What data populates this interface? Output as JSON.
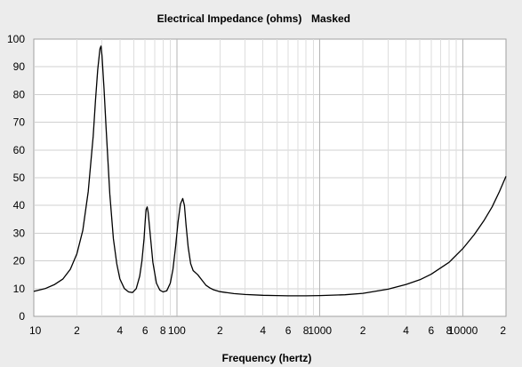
{
  "window": {
    "title": "Electrical Impedance (ohms)",
    "mode_label": "Masked"
  },
  "chart_data": {
    "type": "line",
    "title": "Electrical Impedance (ohms)",
    "subtitle": "Masked",
    "xlabel": "Frequency (hertz)",
    "ylabel": "",
    "xscale": "log",
    "xlim": [
      10,
      20000
    ],
    "ylim": [
      0,
      100
    ],
    "grid": true,
    "x_tick_labels": [
      {
        "value": 10,
        "label": "10"
      },
      {
        "value": 20,
        "label": "2"
      },
      {
        "value": 40,
        "label": "4"
      },
      {
        "value": 60,
        "label": "6"
      },
      {
        "value": 80,
        "label": "8"
      },
      {
        "value": 100,
        "label": "100"
      },
      {
        "value": 200,
        "label": "2"
      },
      {
        "value": 400,
        "label": "4"
      },
      {
        "value": 600,
        "label": "6"
      },
      {
        "value": 800,
        "label": "8"
      },
      {
        "value": 1000,
        "label": "1000"
      },
      {
        "value": 2000,
        "label": "2"
      },
      {
        "value": 4000,
        "label": "4"
      },
      {
        "value": 6000,
        "label": "6"
      },
      {
        "value": 8000,
        "label": "8"
      },
      {
        "value": 10000,
        "label": "10000"
      },
      {
        "value": 20000,
        "label": "2"
      }
    ],
    "y_ticks": [
      0,
      10,
      20,
      30,
      40,
      50,
      60,
      70,
      80,
      90,
      100
    ],
    "series": [
      {
        "color": "#000000",
        "x": [
          10,
          12,
          14,
          16,
          18,
          20,
          22,
          24,
          26,
          27,
          28,
          29,
          29.5,
          30,
          31,
          32,
          34,
          36,
          38,
          40,
          43,
          46,
          49,
          52,
          55,
          57,
          59,
          60,
          61,
          62,
          63,
          65,
          68,
          72,
          76,
          80,
          85,
          90,
          94,
          98,
          102,
          106,
          110,
          113,
          116,
          120,
          125,
          130,
          140,
          150,
          160,
          170,
          180,
          200,
          250,
          300,
          400,
          500,
          600,
          800,
          1000,
          1500,
          2000,
          3000,
          4000,
          5000,
          6000,
          8000,
          10000,
          12000,
          14000,
          16000,
          18000,
          20000
        ],
        "y": [
          9.0,
          10.0,
          11.5,
          13.5,
          17.0,
          22.5,
          31.0,
          45.0,
          65.0,
          78.0,
          89.0,
          96.5,
          97.5,
          94.0,
          82.0,
          68.0,
          44.0,
          28.0,
          19.0,
          13.5,
          10.0,
          8.8,
          8.6,
          10.0,
          14.5,
          20.0,
          28.0,
          34.0,
          38.5,
          39.5,
          37.5,
          30.0,
          19.5,
          12.0,
          9.5,
          8.8,
          9.2,
          12.0,
          17.0,
          25.0,
          34.0,
          40.5,
          42.5,
          40.0,
          33.0,
          25.0,
          19.0,
          16.5,
          15.0,
          13.0,
          11.2,
          10.3,
          9.6,
          8.9,
          8.2,
          7.9,
          7.6,
          7.5,
          7.4,
          7.4,
          7.5,
          7.8,
          8.3,
          9.8,
          11.5,
          13.2,
          15.2,
          19.5,
          24.5,
          29.5,
          34.5,
          39.5,
          45.0,
          50.5
        ]
      }
    ]
  }
}
